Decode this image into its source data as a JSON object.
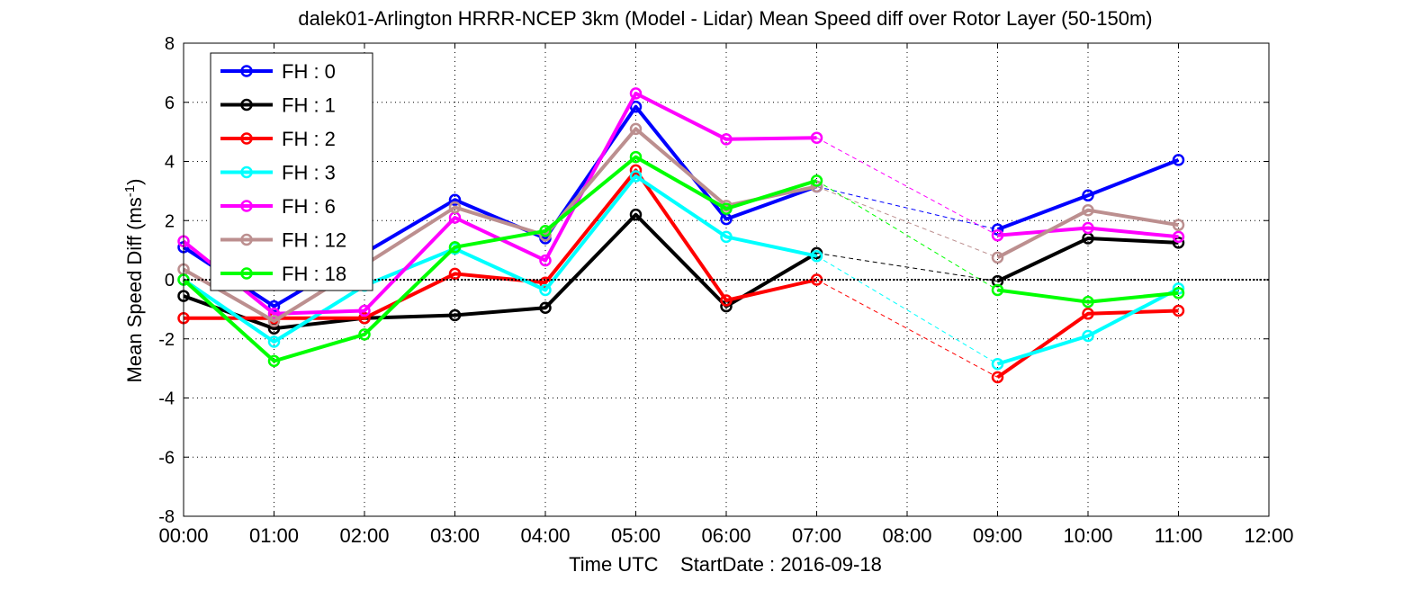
{
  "chart_data": {
    "type": "line",
    "title": "dalek01-Arlington HRRR-NCEP 3km (Model - Lidar) Mean Speed diff over Rotor Layer (50-150m)",
    "xlabel": "Time UTC    StartDate : 2016-09-18",
    "ylabel_main": "Mean Speed Diff (ms",
    "ylabel_sup": "-1",
    "ylabel_tail": ")",
    "xlim": [
      0,
      12
    ],
    "ylim": [
      -8,
      8
    ],
    "x_ticks": [
      0,
      1,
      2,
      3,
      4,
      5,
      6,
      7,
      8,
      9,
      10,
      11,
      12
    ],
    "x_tick_labels": [
      "00:00",
      "01:00",
      "02:00",
      "03:00",
      "04:00",
      "05:00",
      "06:00",
      "07:00",
      "08:00",
      "09:00",
      "10:00",
      "11:00",
      "12:00"
    ],
    "y_ticks": [
      -8,
      -6,
      -4,
      -2,
      0,
      2,
      4,
      6,
      8
    ],
    "y_tick_labels": [
      "-8",
      "-6",
      "-4",
      "-2",
      "0",
      "2",
      "4",
      "6",
      "8"
    ],
    "grid": true,
    "legend_position": "top-left",
    "gap_between": [
      7,
      9
    ],
    "series": [
      {
        "name": "FH : 0",
        "color": "#0000ff",
        "x": [
          0,
          1,
          2,
          3,
          4,
          5,
          6,
          7,
          9,
          10,
          11
        ],
        "y": [
          1.1,
          -0.9,
          0.9,
          2.7,
          1.4,
          5.85,
          2.05,
          3.15,
          1.7,
          2.85,
          4.05
        ]
      },
      {
        "name": "FH : 1",
        "color": "#000000",
        "x": [
          0,
          1,
          2,
          3,
          4,
          5,
          6,
          7,
          9,
          10,
          11
        ],
        "y": [
          -0.55,
          -1.65,
          -1.3,
          -1.2,
          -0.95,
          2.2,
          -0.9,
          0.9,
          -0.05,
          1.4,
          1.25
        ]
      },
      {
        "name": "FH : 2",
        "color": "#ff0000",
        "x": [
          0,
          1,
          2,
          3,
          4,
          5,
          6,
          7,
          9,
          10,
          11
        ],
        "y": [
          -1.3,
          -1.3,
          -1.3,
          0.2,
          -0.1,
          3.7,
          -0.7,
          0.0,
          -3.3,
          -1.15,
          -1.05
        ]
      },
      {
        "name": "FH : 3",
        "color": "#00ffff",
        "x": [
          0,
          1,
          2,
          3,
          4,
          5,
          6,
          7,
          9,
          10,
          11
        ],
        "y": [
          0.0,
          -2.1,
          -0.2,
          1.05,
          -0.35,
          3.5,
          1.45,
          0.8,
          -2.85,
          -1.9,
          -0.3
        ]
      },
      {
        "name": "FH : 6",
        "color": "#ff00ff",
        "x": [
          0,
          1,
          2,
          3,
          4,
          5,
          6,
          7,
          9,
          10,
          11
        ],
        "y": [
          1.3,
          -1.15,
          -1.05,
          2.1,
          0.65,
          6.3,
          4.75,
          4.8,
          1.5,
          1.75,
          1.45
        ]
      },
      {
        "name": "FH : 12",
        "color": "#bc8f8f",
        "x": [
          0,
          1,
          2,
          3,
          4,
          5,
          6,
          7,
          9,
          10,
          11
        ],
        "y": [
          0.35,
          -1.4,
          0.5,
          2.45,
          1.5,
          5.1,
          2.5,
          3.15,
          0.75,
          2.35,
          1.85
        ]
      },
      {
        "name": "FH : 18",
        "color": "#00ff00",
        "x": [
          0,
          1,
          2,
          3,
          4,
          5,
          6,
          7,
          9,
          10,
          11
        ],
        "y": [
          0.0,
          -2.75,
          -1.85,
          1.1,
          1.65,
          4.15,
          2.4,
          3.35,
          -0.35,
          -0.75,
          -0.45
        ]
      }
    ]
  }
}
